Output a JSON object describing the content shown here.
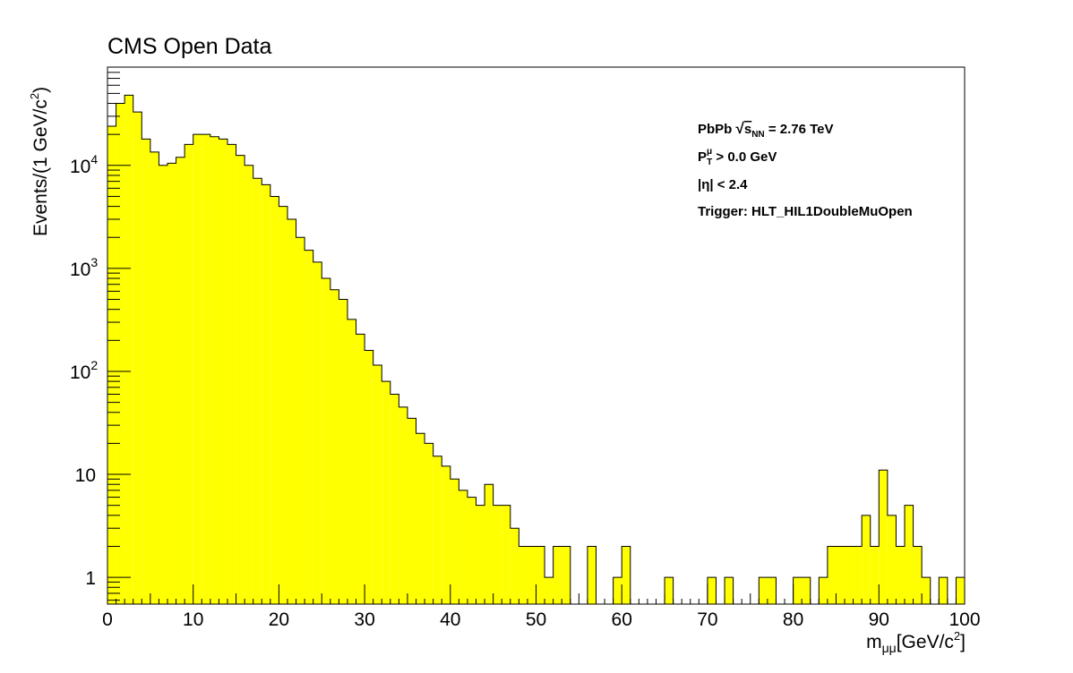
{
  "chart_data": {
    "type": "bar",
    "title": "CMS Open Data",
    "xlabel": "m",
    "xlabel_sub": "μμ",
    "xlabel_unit": "[GeV/c",
    "xlabel_unit_sup": "2",
    "xlabel_unit_close": "]",
    "ylabel": "Events/(1 GeV/c",
    "ylabel_sup": "2",
    "ylabel_close": ")",
    "xlim": [
      0,
      100
    ],
    "ylim": [
      0.55,
      90000
    ],
    "yscale": "log",
    "bin_width": 1,
    "fill_color": "#ffff00",
    "x_ticks": [
      "0",
      "10",
      "20",
      "30",
      "40",
      "50",
      "60",
      "70",
      "80",
      "90",
      "100"
    ],
    "y_ticks": [
      {
        "value": 1,
        "base": "1",
        "exp": ""
      },
      {
        "value": 10,
        "base": "10",
        "exp": ""
      },
      {
        "value": 100,
        "base": "10",
        "exp": "2"
      },
      {
        "value": 1000,
        "base": "10",
        "exp": "3"
      },
      {
        "value": 10000,
        "base": "10",
        "exp": "4"
      }
    ],
    "values": [
      24000,
      40000,
      48000,
      33000,
      18000,
      13500,
      10000,
      10500,
      12000,
      16000,
      20000,
      20000,
      19000,
      18000,
      16000,
      12500,
      10000,
      7500,
      6500,
      5000,
      4000,
      3000,
      2000,
      1500,
      1150,
      800,
      620,
      500,
      320,
      230,
      160,
      115,
      80,
      60,
      45,
      35,
      25,
      20,
      15,
      12,
      9,
      7,
      6,
      5,
      8,
      5,
      5,
      3,
      2,
      2,
      2,
      1,
      2,
      2,
      0,
      0,
      2,
      0,
      0,
      1,
      2,
      0,
      0,
      0,
      0,
      1,
      0,
      0,
      0,
      0,
      1,
      0,
      1,
      0,
      0,
      0,
      1,
      1,
      0,
      0,
      1,
      1,
      0,
      1,
      2,
      2,
      2,
      2,
      4,
      2,
      11,
      4,
      2,
      5,
      2,
      1,
      0,
      1,
      0,
      1
    ],
    "annotations": {
      "line1_pre": "PbPb ",
      "line1_sqrt": "√",
      "line1_s": "s",
      "line1_sub": "NN",
      "line1_post": " = 2.76 TeV",
      "line2_p": "P",
      "line2_sup": "μ",
      "line2_sub": "T",
      "line2_post": " > 0.0 GeV",
      "line3_pre": "|η|",
      "line3_post": " < 2.4",
      "line4": "Trigger: HLT_HIL1DoubleMuOpen"
    }
  }
}
